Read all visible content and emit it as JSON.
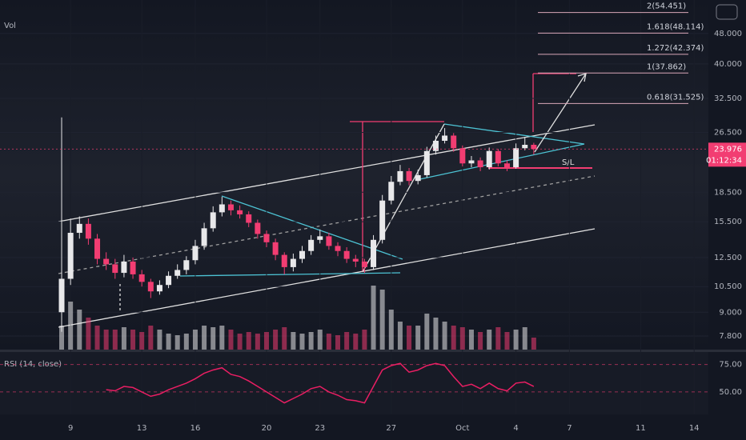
{
  "chart_data": {
    "type": "candlestick",
    "volume_label": "Vol",
    "rsi_label": "RSI (14, close)",
    "last_price_label": "23.976",
    "countdown": "01:12:34",
    "annotation": "S/L",
    "up_color": "#e8e8ea",
    "down_color": "#f23d72",
    "rsi_color": "#e91e63",
    "x": [
      8.5,
      9,
      9.5,
      10,
      10.5,
      11,
      11.5,
      12,
      12.5,
      13,
      13.5,
      14,
      14.5,
      15,
      15.5,
      16,
      16.5,
      17,
      17.5,
      18,
      18.5,
      19,
      19.5,
      20,
      20.5,
      21,
      21.5,
      22,
      22.5,
      23,
      23.5,
      24,
      24.5,
      25,
      25.5,
      26,
      26.5,
      27,
      27.5,
      28,
      28.5,
      29,
      29.5,
      30,
      30.5,
      31,
      31.5,
      32,
      32.5,
      33,
      33.5,
      34,
      34.5,
      35
    ],
    "open": [
      9.0,
      11.0,
      14.5,
      15.3,
      14.0,
      12.4,
      12.0,
      11.4,
      12.2,
      11.3,
      10.8,
      10.2,
      10.6,
      11.2,
      11.6,
      12.3,
      13.4,
      14.9,
      16.4,
      17.2,
      16.6,
      16.2,
      15.4,
      14.4,
      13.7,
      12.7,
      11.8,
      12.4,
      13.0,
      13.9,
      14.2,
      13.4,
      13.0,
      12.4,
      12.2,
      11.8,
      13.9,
      17.6,
      19.7,
      21.0,
      19.8,
      20.5,
      23.7,
      25.2,
      26.0,
      24.1,
      22.0,
      22.4,
      21.5,
      23.7,
      22.0,
      21.5,
      24.1,
      24.6
    ],
    "high": [
      29.0,
      15.8,
      16.0,
      15.8,
      14.4,
      12.9,
      12.4,
      12.7,
      12.5,
      11.6,
      11.0,
      10.9,
      11.5,
      12.0,
      12.6,
      13.9,
      15.4,
      17.0,
      18.0,
      17.6,
      17.1,
      16.5,
      15.7,
      14.7,
      14.0,
      12.9,
      12.8,
      13.4,
      14.3,
      14.8,
      14.5,
      13.7,
      13.3,
      12.7,
      12.4,
      14.3,
      18.2,
      20.4,
      21.8,
      21.4,
      21.2,
      24.3,
      26.0,
      27.2,
      26.4,
      24.5,
      23.0,
      22.8,
      24.2,
      24.0,
      22.4,
      24.8,
      25.8,
      24.9
    ],
    "low": [
      8.0,
      10.6,
      14.0,
      13.5,
      12.0,
      11.6,
      11.0,
      11.1,
      11.0,
      10.5,
      9.8,
      10.0,
      10.4,
      11.0,
      11.3,
      12.0,
      13.1,
      14.6,
      16.0,
      16.1,
      15.8,
      15.0,
      14.0,
      13.3,
      12.3,
      11.3,
      11.5,
      12.1,
      12.7,
      13.6,
      13.1,
      12.6,
      12.1,
      11.8,
      11.4,
      11.6,
      13.6,
      17.2,
      19.3,
      19.3,
      19.4,
      20.2,
      23.2,
      24.8,
      23.6,
      21.6,
      21.5,
      21.0,
      21.2,
      21.6,
      21.0,
      21.3,
      23.8,
      23.2
    ],
    "close": [
      11.0,
      14.5,
      15.3,
      14.0,
      12.4,
      12.0,
      11.4,
      12.2,
      11.3,
      10.8,
      10.2,
      10.6,
      11.2,
      11.6,
      12.3,
      13.4,
      14.9,
      16.4,
      17.2,
      16.6,
      16.2,
      15.4,
      14.4,
      13.7,
      12.7,
      11.8,
      12.4,
      13.0,
      13.9,
      14.2,
      13.4,
      13.0,
      12.4,
      12.2,
      11.8,
      13.9,
      17.6,
      19.7,
      21.0,
      19.8,
      20.5,
      23.7,
      25.2,
      26.0,
      24.1,
      22.0,
      22.4,
      21.5,
      23.7,
      22.0,
      21.5,
      24.1,
      24.6,
      23.976
    ],
    "volume": [
      30,
      60,
      50,
      40,
      30,
      25,
      25,
      28,
      25,
      22,
      30,
      25,
      20,
      18,
      20,
      25,
      30,
      28,
      30,
      25,
      20,
      22,
      20,
      22,
      25,
      28,
      22,
      20,
      22,
      25,
      20,
      18,
      22,
      20,
      25,
      80,
      75,
      50,
      35,
      30,
      30,
      45,
      40,
      35,
      30,
      28,
      25,
      22,
      25,
      28,
      22,
      25,
      28,
      15
    ],
    "rsi": [
      null,
      null,
      null,
      null,
      null,
      52,
      51,
      55,
      54,
      50,
      46,
      48,
      52,
      55,
      58,
      62,
      67,
      70,
      72,
      66,
      64,
      60,
      55,
      50,
      45,
      40,
      44,
      48,
      53,
      55,
      50,
      47,
      43,
      42,
      40,
      55,
      70,
      74,
      76,
      68,
      70,
      74,
      76,
      74,
      64,
      55,
      57,
      53,
      58,
      53,
      51,
      58,
      59,
      55
    ],
    "last_price": 23.976,
    "fib_levels": [
      {
        "value": 54.451,
        "label": "2(54.451)"
      },
      {
        "value": 48.114,
        "label": "1.618(48.114)"
      },
      {
        "value": 42.374,
        "label": "1.272(42.374)"
      },
      {
        "value": 37.862,
        "label": "1(37.862)"
      },
      {
        "value": 31.525,
        "label": "0.618(31.525)"
      }
    ],
    "log_scale": true,
    "ylim": [
      7.19,
      58.7
    ],
    "yticks": [
      {
        "value": 7.8,
        "label": "7.800"
      },
      {
        "value": 9,
        "label": "9.000"
      },
      {
        "value": 10.5,
        "label": "10.500"
      },
      {
        "value": 12.5,
        "label": "12.500"
      },
      {
        "value": 15.5,
        "label": "15.500"
      },
      {
        "value": 18.5,
        "label": "18.500"
      },
      {
        "value": 26.5,
        "label": "26.500"
      },
      {
        "value": 32.5,
        "label": "32.500"
      },
      {
        "value": 40,
        "label": "40.000"
      },
      {
        "value": 48,
        "label": "48.000"
      }
    ],
    "rsi_lim": [
      29.5,
      86.4
    ],
    "rsi_ticks": [
      {
        "value": 75,
        "label": "75.00"
      },
      {
        "value": 50,
        "label": "50.00"
      }
    ],
    "xlim": [
      5.04,
      44.8
    ],
    "xticks": [
      9,
      13,
      16,
      20,
      23,
      27,
      {
        "value": 31,
        "label": "Oct"
      },
      {
        "value": 34,
        "label": "4"
      },
      {
        "value": 37,
        "label": "7"
      },
      {
        "value": 41,
        "label": "11"
      },
      {
        "value": 44,
        "label": "14"
      }
    ]
  }
}
